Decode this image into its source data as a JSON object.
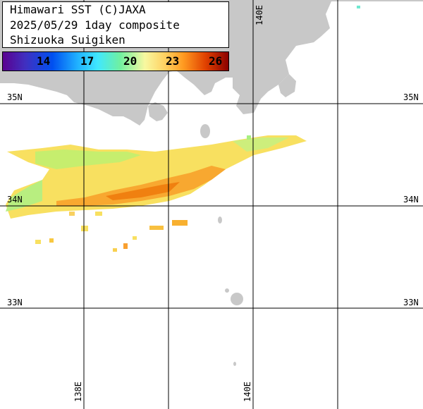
{
  "title": {
    "line1": "Himawari SST (C)JAXA",
    "line2": "2025/05/29 1day composite",
    "line3": "Shizuoka Suigiken"
  },
  "colorbar": {
    "ticks": [
      "14",
      "17",
      "20",
      "23",
      "26"
    ],
    "tick_colors": [
      "#000000",
      "#000000",
      "#000000",
      "#000000",
      "#000000"
    ]
  },
  "grid_labels": {
    "lat_35_left": "35N",
    "lat_35_right": "35N",
    "lat_34_left": "34N",
    "lat_34_right": "34N",
    "lat_33_left": "33N",
    "lat_33_right": "33N",
    "lon_138_bottom": "138E",
    "lon_140_bottom": "140E",
    "lon_140_top": "140E"
  },
  "colors": {
    "land": "#c8c8c8",
    "grid": "#000000",
    "sst_cool": "#a8f070",
    "sst_mid": "#f8e050",
    "sst_warm": "#f09020"
  }
}
